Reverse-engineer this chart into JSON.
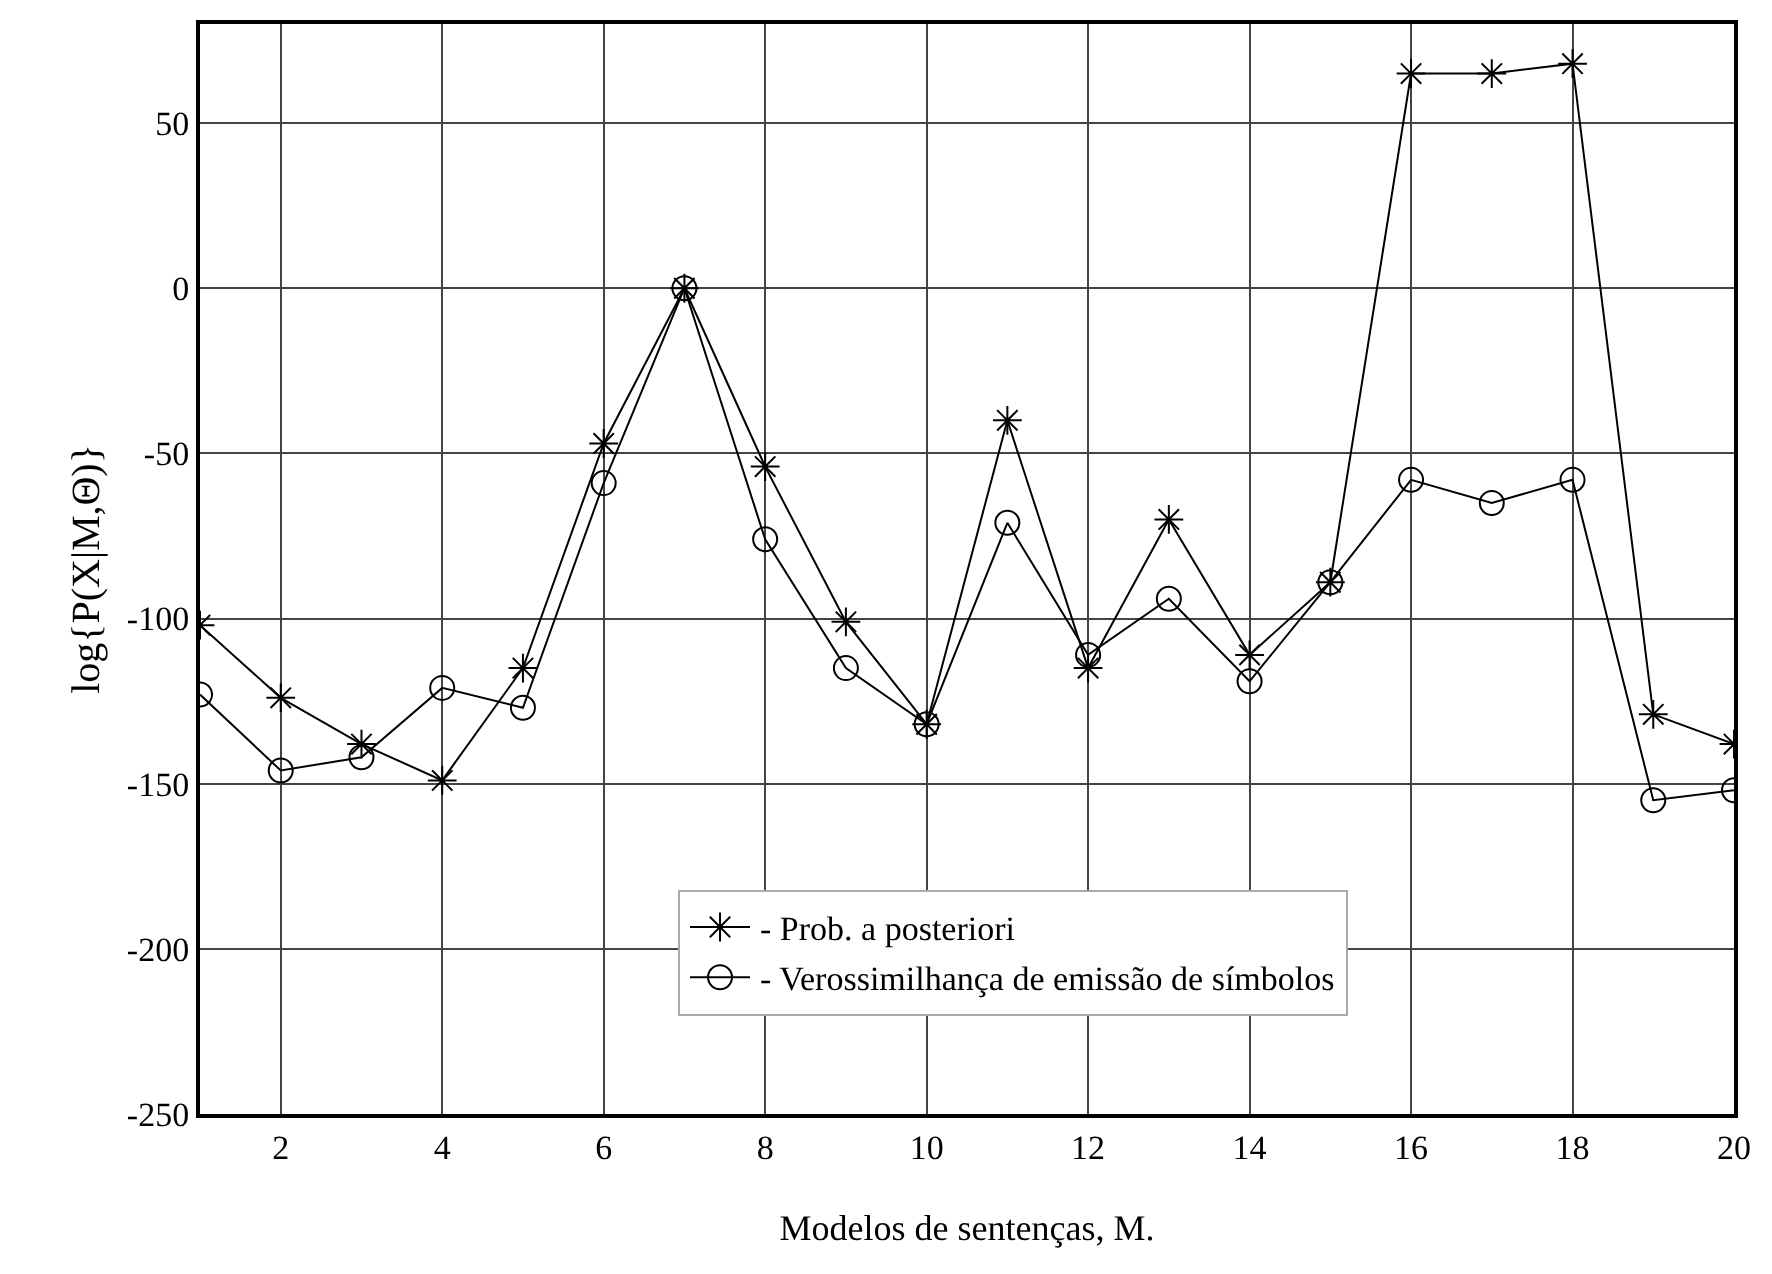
{
  "chart_data": {
    "type": "line",
    "xlabel": "Modelos de sentenças, M.",
    "ylabel": "log{P(X|M,Θ)}",
    "x": [
      1,
      2,
      3,
      4,
      5,
      6,
      7,
      8,
      9,
      10,
      11,
      12,
      13,
      14,
      15,
      16,
      17,
      18,
      19,
      20
    ],
    "series": [
      {
        "name": "- Prob. a posteriori",
        "color": "#000000",
        "marker": "cross",
        "values": [
          -102,
          -124,
          -138,
          -149,
          -115,
          -47,
          0,
          -54,
          -101,
          -132,
          -40,
          -115,
          -70,
          -111,
          -89,
          65,
          65,
          68,
          -129,
          -138
        ]
      },
      {
        "name": "- Verossimilhança de emissão de símbolos",
        "color": "#000000",
        "marker": "circle",
        "values": [
          -123,
          -146,
          -142,
          -121,
          -127,
          -59,
          0,
          -76,
          -115,
          -132,
          -71,
          -111,
          -94,
          -119,
          -89,
          -58,
          -65,
          -58,
          -155,
          -152
        ]
      }
    ],
    "xlim": [
      1,
      20
    ],
    "xticks": [
      2,
      4,
      6,
      8,
      10,
      12,
      14,
      16,
      18,
      20
    ],
    "ylim": [
      -250,
      80
    ],
    "yticks": [
      -250,
      -200,
      -150,
      -100,
      -50,
      0,
      50
    ],
    "grid": true,
    "legend": "bottom",
    "line_style": "solid"
  }
}
